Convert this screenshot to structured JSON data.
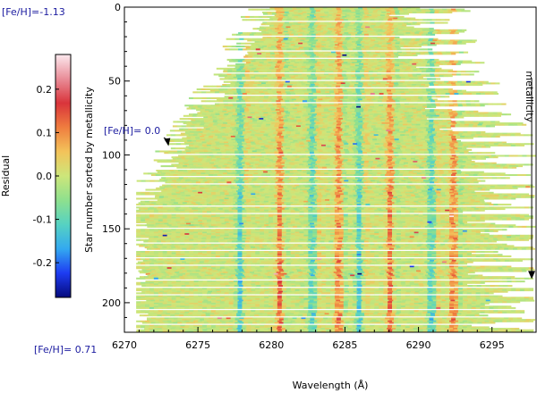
{
  "chart_data": {
    "type": "heatmap",
    "title": "",
    "xlabel": "Wavelength (Å)",
    "ylabel": "Star number sorted by metallicity",
    "xlim": [
      6270,
      6298
    ],
    "ylim": [
      0,
      220
    ],
    "x_ticks": [
      6270,
      6275,
      6280,
      6285,
      6290,
      6295
    ],
    "y_ticks": [
      0,
      50,
      100,
      150,
      200
    ],
    "y_inverted": true,
    "colorbar": {
      "label": "Residual",
      "range": [
        -0.28,
        0.28
      ],
      "ticks": [
        0.2,
        0.1,
        0.0,
        -0.1,
        -0.2
      ],
      "tick_labels": [
        "0.2",
        "0.1",
        "0.0",
        "-0.1",
        "-0.2"
      ],
      "colormap": [
        "#050a7c",
        "#1e3cf2",
        "#33a9f0",
        "#56d2c2",
        "#8ee08e",
        "#cde67a",
        "#f3c35a",
        "#ef7d3f",
        "#d9343b",
        "#e98d98",
        "#fce9ee"
      ]
    },
    "absorption_line_centers": [
      6277.9,
      6280.6,
      6282.8,
      6284.6,
      6286.0,
      6288.1,
      6290.9,
      6292.4
    ],
    "annotations": {
      "top_metallicity": "[Fe/H]=-1.13",
      "mid_metallicity": "[Fe/H]= 0.0",
      "mid_metallicity_star": 94,
      "bottom_metallicity": "[Fe/H]= 0.71",
      "arrow_label": "metallicity",
      "arrow_wavelength": 6297.7,
      "arrow_from_star": 48,
      "arrow_to_star": 184
    }
  }
}
